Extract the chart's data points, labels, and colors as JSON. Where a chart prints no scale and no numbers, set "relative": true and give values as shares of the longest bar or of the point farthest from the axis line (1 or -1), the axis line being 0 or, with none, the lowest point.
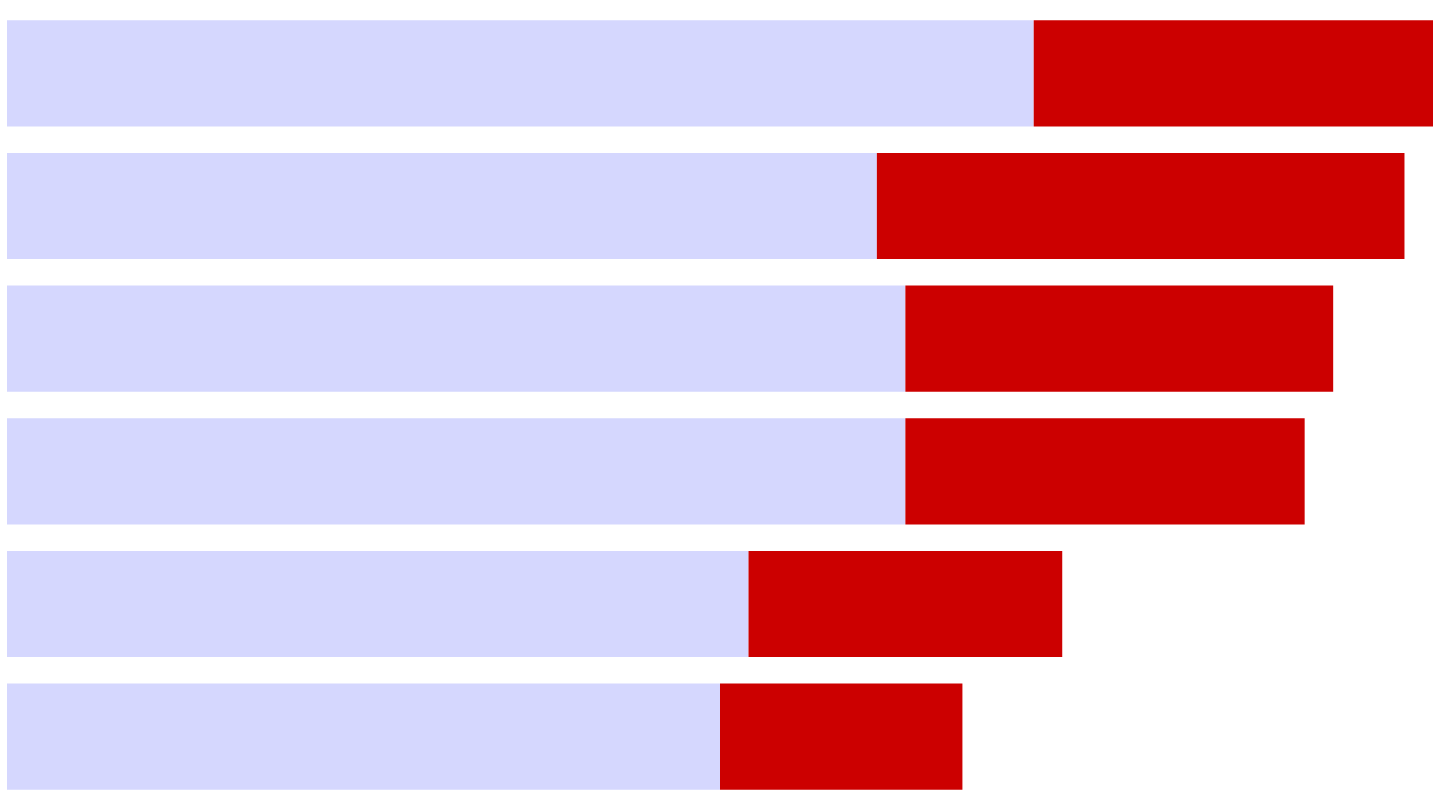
{
  "chart_data": {
    "type": "bar",
    "orientation": "horizontal",
    "stacked": true,
    "relative": true,
    "categories": [
      null,
      null,
      null,
      null,
      null,
      null
    ],
    "series": [
      {
        "color": "#d5d7fe",
        "values": [
          0.72,
          0.61,
          0.63,
          0.63,
          0.52,
          0.5
        ]
      },
      {
        "color": "#cc0000",
        "values": [
          0.28,
          0.37,
          0.3,
          0.28,
          0.22,
          0.17
        ]
      }
    ]
  }
}
